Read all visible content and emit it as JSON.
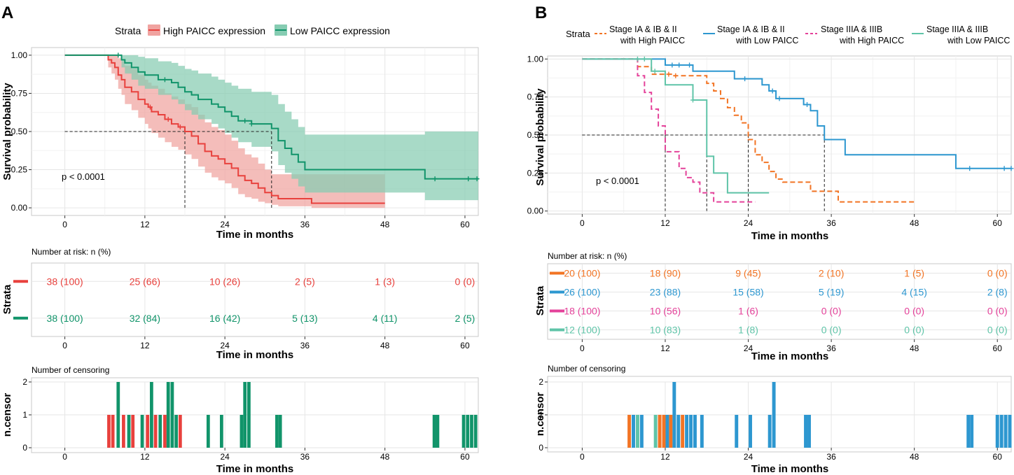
{
  "colors": {
    "high": "#e8413d",
    "low": "#11946a",
    "highFill": "#f0a3a0",
    "lowFill": "#86ccb2",
    "bOrange": "#f27424",
    "bBlue": "#2d97d0",
    "bPink": "#e4429a",
    "bTeal": "#5fc4a8",
    "grid": "#e6e6e6",
    "panel": "#ffffff",
    "frame": "#c8c8c8"
  },
  "panelA": {
    "letter": "A",
    "legend_title": "Strata",
    "legend_labels": [
      "High PAICC expression",
      "Low PAICC expression"
    ]
  },
  "panelB": {
    "letter": "B",
    "legend_title": "Strata",
    "legend_lines": [
      [
        "Stage IA & IB & II",
        "with High PAICC"
      ],
      [
        "Stage IA & IB & II",
        "with Low PAICC"
      ],
      [
        "Stage IIIA & IIIB",
        "with High PAICC"
      ],
      [
        "Stage IIIA & IIIB",
        "with Low  PAICC"
      ]
    ]
  },
  "chart_data": [
    {
      "id": "A-km",
      "type": "line",
      "panel": "A",
      "title": "",
      "xlabel": "Time in months",
      "ylabel": "Survival probability",
      "xlim": [
        -5,
        62
      ],
      "ylim": [
        -0.05,
        1.05
      ],
      "xticks": [
        0,
        12,
        24,
        36,
        48,
        60
      ],
      "yticks": [
        0,
        0.25,
        0.5,
        0.75,
        1
      ],
      "ytick_labels": [
        "0.00",
        "0.25",
        "0.50",
        "0.75",
        "1.00"
      ],
      "annotation": "p < 0.0001",
      "median_lines": [
        {
          "x": 18,
          "y": 0.5
        },
        {
          "x": 31,
          "y": 0.5
        }
      ],
      "series": [
        {
          "name": "High PAICC expression",
          "color": "high",
          "dash": "",
          "x": [
            0,
            6,
            6.5,
            7,
            7.5,
            8,
            8.5,
            9,
            10,
            11,
            12,
            12.5,
            13,
            14,
            15,
            16,
            17,
            18,
            19,
            20,
            21,
            22,
            23,
            24,
            25,
            26,
            27,
            28,
            29,
            30,
            31,
            32,
            34,
            36,
            37,
            48
          ],
          "y": [
            1,
            1,
            0.97,
            0.95,
            0.92,
            0.87,
            0.84,
            0.79,
            0.76,
            0.71,
            0.68,
            0.66,
            0.63,
            0.61,
            0.58,
            0.55,
            0.53,
            0.5,
            0.47,
            0.42,
            0.37,
            0.34,
            0.32,
            0.29,
            0.26,
            0.21,
            0.18,
            0.16,
            0.13,
            0.1,
            0.08,
            0.06,
            0.06,
            0.06,
            0.03,
            0.03
          ],
          "band_lower": [
            1,
            1,
            0.92,
            0.88,
            0.84,
            0.78,
            0.74,
            0.68,
            0.64,
            0.59,
            0.55,
            0.52,
            0.49,
            0.46,
            0.43,
            0.4,
            0.38,
            0.35,
            0.32,
            0.27,
            0.23,
            0.2,
            0.18,
            0.16,
            0.13,
            0.09,
            0.07,
            0.06,
            0.04,
            0.03,
            0.02,
            0.01,
            0.01,
            0.01,
            0.0,
            0.0
          ],
          "band_upper": [
            1,
            1,
            1,
            1,
            1,
            0.98,
            0.96,
            0.93,
            0.91,
            0.87,
            0.84,
            0.82,
            0.8,
            0.78,
            0.75,
            0.73,
            0.71,
            0.68,
            0.66,
            0.61,
            0.56,
            0.53,
            0.51,
            0.48,
            0.44,
            0.39,
            0.35,
            0.33,
            0.29,
            0.25,
            0.22,
            0.22,
            0.22,
            0.22,
            0.22,
            0.22
          ],
          "censor_x": [
            12.8,
            15.5,
            17.3
          ]
        },
        {
          "name": "Low PAICC expression",
          "color": "low",
          "dash": "",
          "x": [
            0,
            7,
            8.5,
            9,
            10,
            11,
            12,
            13,
            14,
            15,
            16,
            17,
            18,
            19,
            20,
            21,
            22,
            23,
            24,
            25,
            26,
            28,
            30,
            31,
            32,
            33,
            34,
            35,
            36,
            54,
            62
          ],
          "y": [
            1,
            1,
            0.97,
            0.95,
            0.92,
            0.89,
            0.87,
            0.87,
            0.84,
            0.84,
            0.82,
            0.79,
            0.76,
            0.74,
            0.71,
            0.71,
            0.68,
            0.66,
            0.63,
            0.6,
            0.57,
            0.55,
            0.55,
            0.52,
            0.44,
            0.39,
            0.35,
            0.3,
            0.25,
            0.19,
            0.19
          ],
          "band_lower": [
            1,
            1,
            0.92,
            0.88,
            0.84,
            0.8,
            0.78,
            0.78,
            0.74,
            0.74,
            0.71,
            0.68,
            0.64,
            0.61,
            0.58,
            0.58,
            0.55,
            0.52,
            0.49,
            0.46,
            0.43,
            0.4,
            0.4,
            0.37,
            0.28,
            0.23,
            0.19,
            0.14,
            0.1,
            0.05,
            0.05
          ],
          "band_upper": [
            1,
            1,
            1,
            1,
            1,
            0.99,
            0.98,
            0.98,
            0.96,
            0.96,
            0.95,
            0.93,
            0.91,
            0.9,
            0.88,
            0.88,
            0.86,
            0.84,
            0.82,
            0.8,
            0.78,
            0.76,
            0.76,
            0.74,
            0.68,
            0.63,
            0.58,
            0.53,
            0.48,
            0.5,
            0.5
          ],
          "censor_x": [
            8,
            15,
            27,
            28,
            55.5,
            60.5,
            61.8
          ]
        }
      ]
    },
    {
      "id": "A-risk",
      "type": "table",
      "panel": "A",
      "title": "Number at risk: n (%)",
      "xlabel": "Time in months",
      "ylabel": "Strata",
      "xticks": [
        0,
        12,
        24,
        36,
        48,
        60
      ],
      "rows": [
        {
          "color": "high",
          "values": [
            "38 (100)",
            "25 (66)",
            "10 (26)",
            "2 (5)",
            "1 (3)",
            "0 (0)"
          ]
        },
        {
          "color": "low",
          "values": [
            "38 (100)",
            "32 (84)",
            "16 (42)",
            "5 (13)",
            "4 (11)",
            "2 (5)"
          ]
        }
      ]
    },
    {
      "id": "A-censor",
      "type": "bar",
      "panel": "A",
      "title": "Number of censoring",
      "xlabel": "Time in months",
      "ylabel": "n.censor",
      "xticks": [
        0,
        12,
        24,
        36,
        48,
        60
      ],
      "yticks": [
        0,
        1,
        2
      ],
      "ylim": [
        0,
        2
      ],
      "bars": [
        {
          "x": 6.6,
          "v": 1,
          "c": "high"
        },
        {
          "x": 7.2,
          "v": 1,
          "c": "high"
        },
        {
          "x": 8.0,
          "v": 2,
          "c": "low"
        },
        {
          "x": 8.8,
          "v": 1,
          "c": "high"
        },
        {
          "x": 9.6,
          "v": 1,
          "c": "low"
        },
        {
          "x": 10.2,
          "v": 1,
          "c": "high"
        },
        {
          "x": 11.6,
          "v": 1,
          "c": "low"
        },
        {
          "x": 12.4,
          "v": 1,
          "c": "high"
        },
        {
          "x": 13.0,
          "v": 2,
          "c": "low"
        },
        {
          "x": 13.6,
          "v": 1,
          "c": "high"
        },
        {
          "x": 14.3,
          "v": 1,
          "c": "low"
        },
        {
          "x": 15.0,
          "v": 1,
          "c": "high"
        },
        {
          "x": 15.5,
          "v": 2,
          "c": "low"
        },
        {
          "x": 16.1,
          "v": 2,
          "c": "low"
        },
        {
          "x": 16.7,
          "v": 1,
          "c": "low"
        },
        {
          "x": 17.3,
          "v": 1,
          "c": "high"
        },
        {
          "x": 21.5,
          "v": 1,
          "c": "low"
        },
        {
          "x": 23.5,
          "v": 1,
          "c": "low"
        },
        {
          "x": 26.5,
          "v": 1,
          "c": "low"
        },
        {
          "x": 27.0,
          "v": 2,
          "c": "low"
        },
        {
          "x": 27.6,
          "v": 2,
          "c": "low"
        },
        {
          "x": 31.8,
          "v": 1,
          "c": "low"
        },
        {
          "x": 32.3,
          "v": 1,
          "c": "low"
        },
        {
          "x": 55.4,
          "v": 1,
          "c": "low"
        },
        {
          "x": 55.9,
          "v": 1,
          "c": "low"
        },
        {
          "x": 59.8,
          "v": 1,
          "c": "low"
        },
        {
          "x": 60.4,
          "v": 1,
          "c": "low"
        },
        {
          "x": 61.0,
          "v": 1,
          "c": "low"
        },
        {
          "x": 61.6,
          "v": 1,
          "c": "low"
        }
      ]
    },
    {
      "id": "B-km",
      "type": "line",
      "panel": "B",
      "title": "",
      "xlabel": "Time in months",
      "ylabel": "Survival probability",
      "xlim": [
        -5,
        62
      ],
      "ylim": [
        -0.02,
        1.02
      ],
      "xticks": [
        0,
        12,
        24,
        36,
        48,
        60
      ],
      "yticks": [
        0,
        0.25,
        0.5,
        0.75,
        1
      ],
      "ytick_labels": [
        "0.00",
        "0.25",
        "0.50",
        "0.75",
        "1.00"
      ],
      "annotation": "p < 0.0001",
      "median_lines": [
        {
          "x": 12,
          "y": 0.5
        },
        {
          "x": 18,
          "y": 0.5
        },
        {
          "x": 24,
          "y": 0.5
        },
        {
          "x": 35,
          "y": 0.5
        }
      ],
      "series": [
        {
          "name": "Stage IA & IB & II with High PAICC",
          "color": "bOrange",
          "dash": "7,4",
          "x": [
            0,
            7,
            8,
            10,
            12,
            13,
            16,
            18,
            19,
            20,
            21,
            22,
            23,
            24,
            25,
            26,
            27,
            28,
            29,
            30,
            33,
            36,
            37,
            48
          ],
          "y": [
            1,
            1,
            0.95,
            0.9,
            0.9,
            0.89,
            0.89,
            0.84,
            0.79,
            0.74,
            0.68,
            0.63,
            0.58,
            0.47,
            0.37,
            0.32,
            0.26,
            0.21,
            0.19,
            0.19,
            0.13,
            0.13,
            0.06,
            0.06
          ],
          "censor_x": [
            12.5,
            13.5
          ]
        },
        {
          "name": "Stage IA & IB & II with Low PAICC",
          "color": "bBlue",
          "dash": "",
          "x": [
            0,
            10,
            12,
            16,
            17,
            22,
            24,
            26,
            27,
            28,
            29,
            32,
            33,
            34,
            35,
            38,
            54,
            62
          ],
          "y": [
            1,
            1,
            0.96,
            0.92,
            0.92,
            0.87,
            0.87,
            0.83,
            0.79,
            0.74,
            0.74,
            0.7,
            0.66,
            0.56,
            0.47,
            0.37,
            0.28,
            0.28
          ],
          "censor_x": [
            13,
            14,
            15.5,
            23.5,
            27.5,
            28.5,
            32.5,
            56,
            61,
            62
          ]
        },
        {
          "name": "Stage IIIA & IIIB with High PAICC",
          "color": "bPink",
          "dash": "7,4",
          "x": [
            0,
            7,
            8,
            9,
            10,
            11,
            12,
            14,
            15,
            16,
            17,
            19,
            21,
            24,
            25
          ],
          "y": [
            1,
            1,
            0.89,
            0.78,
            0.67,
            0.56,
            0.39,
            0.28,
            0.22,
            0.19,
            0.12,
            0.06,
            0.06,
            0.06,
            0.06
          ],
          "censor_x": []
        },
        {
          "name": "Stage IIIA & IIIB with Low PAICC",
          "color": "bTeal",
          "dash": "",
          "x": [
            0,
            8,
            10,
            12,
            15,
            16,
            17,
            18,
            19,
            21,
            27
          ],
          "y": [
            1,
            1,
            0.92,
            0.83,
            0.83,
            0.73,
            0.73,
            0.36,
            0.25,
            0.12,
            0.12
          ],
          "censor_x": [
            8,
            9,
            10.5,
            16
          ]
        }
      ]
    },
    {
      "id": "B-risk",
      "type": "table",
      "panel": "B",
      "title": "Number at risk: n (%)",
      "xlabel": "Time in months",
      "ylabel": "Strata",
      "xticks": [
        0,
        12,
        24,
        36,
        48,
        60
      ],
      "rows": [
        {
          "color": "bOrange",
          "values": [
            "20 (100)",
            "18 (90)",
            "9 (45)",
            "2 (10)",
            "1 (5)",
            "0 (0)"
          ]
        },
        {
          "color": "bBlue",
          "values": [
            "26 (100)",
            "23 (88)",
            "15 (58)",
            "5 (19)",
            "4 (15)",
            "2 (8)"
          ]
        },
        {
          "color": "bPink",
          "values": [
            "18 (100)",
            "10 (56)",
            "1 (6)",
            "0 (0)",
            "0 (0)",
            "0 (0)"
          ]
        },
        {
          "color": "bTeal",
          "values": [
            "12 (100)",
            "10 (83)",
            "1 (8)",
            "0 (0)",
            "0 (0)",
            "0 (0)"
          ]
        }
      ]
    },
    {
      "id": "B-censor",
      "type": "bar",
      "panel": "B",
      "title": "Number of censoring",
      "xlabel": "Time in months",
      "ylabel": "n.censor",
      "xticks": [
        0,
        12,
        24,
        36,
        48,
        60
      ],
      "yticks": [
        0,
        1,
        2
      ],
      "ylim": [
        0,
        2
      ],
      "bars": [
        {
          "x": 6.8,
          "v": 1,
          "c": "bOrange"
        },
        {
          "x": 7.4,
          "v": 1,
          "c": "bBlue"
        },
        {
          "x": 8.0,
          "v": 1,
          "c": "bTeal"
        },
        {
          "x": 8.6,
          "v": 1,
          "c": "bBlue"
        },
        {
          "x": 10.6,
          "v": 1,
          "c": "bTeal"
        },
        {
          "x": 11.2,
          "v": 1,
          "c": "bOrange"
        },
        {
          "x": 11.8,
          "v": 1,
          "c": "bOrange"
        },
        {
          "x": 12.3,
          "v": 1,
          "c": "bBlue"
        },
        {
          "x": 12.8,
          "v": 1,
          "c": "bOrange"
        },
        {
          "x": 13.3,
          "v": 2,
          "c": "bBlue"
        },
        {
          "x": 13.9,
          "v": 1,
          "c": "bBlue"
        },
        {
          "x": 14.5,
          "v": 1,
          "c": "bOrange"
        },
        {
          "x": 15.1,
          "v": 1,
          "c": "bBlue"
        },
        {
          "x": 15.7,
          "v": 1,
          "c": "bBlue"
        },
        {
          "x": 16.3,
          "v": 1,
          "c": "bBlue"
        },
        {
          "x": 17.3,
          "v": 1,
          "c": "bBlue"
        },
        {
          "x": 22.3,
          "v": 1,
          "c": "bBlue"
        },
        {
          "x": 24.3,
          "v": 1,
          "c": "bBlue"
        },
        {
          "x": 27.1,
          "v": 1,
          "c": "bBlue"
        },
        {
          "x": 27.7,
          "v": 2,
          "c": "bBlue"
        },
        {
          "x": 32.3,
          "v": 1,
          "c": "bBlue"
        },
        {
          "x": 32.8,
          "v": 1,
          "c": "bBlue"
        },
        {
          "x": 55.8,
          "v": 1,
          "c": "bBlue"
        },
        {
          "x": 56.3,
          "v": 1,
          "c": "bBlue"
        },
        {
          "x": 60.0,
          "v": 1,
          "c": "bBlue"
        },
        {
          "x": 60.6,
          "v": 1,
          "c": "bBlue"
        },
        {
          "x": 61.2,
          "v": 1,
          "c": "bBlue"
        },
        {
          "x": 61.8,
          "v": 1,
          "c": "bBlue"
        }
      ]
    }
  ]
}
